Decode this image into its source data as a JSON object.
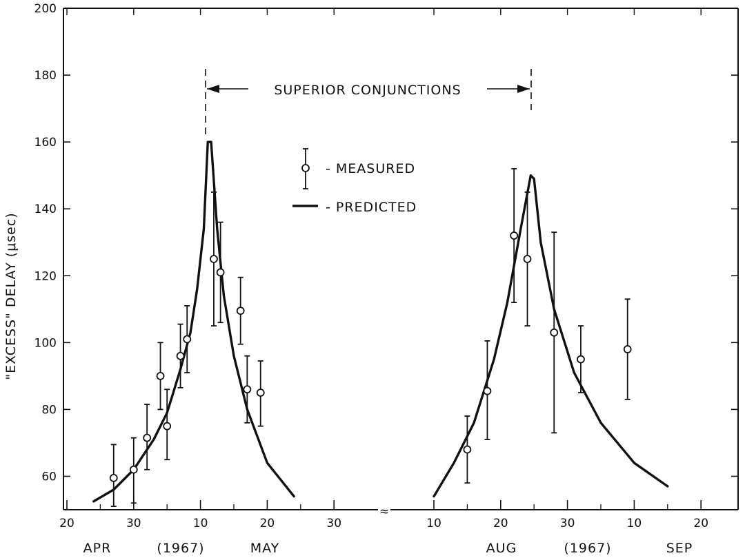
{
  "chart_data": {
    "type": "scatter",
    "title": "",
    "ylabel": "\"EXCESS\" DELAY (μsec)",
    "ylim": [
      50,
      200
    ],
    "y_ticks": [
      "200",
      "180",
      "160",
      "140",
      "120",
      "100",
      "80",
      "60"
    ],
    "x_ticks": [
      "20",
      "30",
      "10",
      "20",
      "30",
      "10",
      "20",
      "30",
      "10",
      "20"
    ],
    "break_mark": "≈",
    "month_labels": [
      "APR",
      "(1967)",
      "MAY",
      "AUG",
      "(1967)",
      "SEP"
    ],
    "annotation": "SUPERIOR CONJUNCTIONS",
    "legend": {
      "measured": "- MEASURED",
      "predicted": "- PREDICTED"
    },
    "segments": [
      {
        "name": "April–May 1967",
        "measured": [
          {
            "x": "1967-04-27",
            "y": 59.5,
            "yerr": [
              51,
              69.5
            ]
          },
          {
            "x": "1967-04-30",
            "y": 62,
            "yerr": [
              52,
              71.5
            ]
          },
          {
            "x": "1967-05-02",
            "y": 71.5,
            "yerr": [
              62,
              81.5
            ]
          },
          {
            "x": "1967-05-04",
            "y": 90,
            "yerr": [
              80,
              100
            ]
          },
          {
            "x": "1967-05-05",
            "y": 75,
            "yerr": [
              65,
              86
            ]
          },
          {
            "x": "1967-05-07",
            "y": 96,
            "yerr": [
              86.5,
              105.5
            ]
          },
          {
            "x": "1967-05-08",
            "y": 101,
            "yerr": [
              91,
              111
            ]
          },
          {
            "x": "1967-05-12",
            "y": 125,
            "yerr": [
              105,
              145
            ]
          },
          {
            "x": "1967-05-13",
            "y": 121,
            "yerr": [
              106,
              136
            ]
          },
          {
            "x": "1967-05-16",
            "y": 109.5,
            "yerr": [
              99.5,
              119.5
            ]
          },
          {
            "x": "1967-05-17",
            "y": 86,
            "yerr": [
              76,
              96
            ]
          },
          {
            "x": "1967-05-19",
            "y": 85,
            "yerr": [
              75,
              94.5
            ]
          }
        ],
        "predicted": [
          {
            "x": "1967-04-24",
            "y": 52.5
          },
          {
            "x": "1967-04-27",
            "y": 56
          },
          {
            "x": "1967-04-30",
            "y": 62
          },
          {
            "x": "1967-05-03",
            "y": 71
          },
          {
            "x": "1967-05-05",
            "y": 79
          },
          {
            "x": "1967-05-07",
            "y": 92
          },
          {
            "x": "1967-05-08.5",
            "y": 103
          },
          {
            "x": "1967-05-09.5",
            "y": 116
          },
          {
            "x": "1967-05-10.5",
            "y": 134
          },
          {
            "x": "1967-05-11.1",
            "y": 160
          },
          {
            "x": "1967-05-11.6",
            "y": 160
          },
          {
            "x": "1967-05-12.5",
            "y": 134
          },
          {
            "x": "1967-05-13.5",
            "y": 114
          },
          {
            "x": "1967-05-15",
            "y": 96
          },
          {
            "x": "1967-05-17",
            "y": 80
          },
          {
            "x": "1967-05-20",
            "y": 64
          },
          {
            "x": "1967-05-24",
            "y": 54
          }
        ],
        "conjunction": "1967-05-11"
      },
      {
        "name": "August–September 1967",
        "measured": [
          {
            "x": "1967-08-15",
            "y": 68,
            "yerr": [
              58,
              78
            ]
          },
          {
            "x": "1967-08-18",
            "y": 85.5,
            "yerr": [
              71,
              100.5
            ]
          },
          {
            "x": "1967-08-22",
            "y": 132,
            "yerr": [
              112,
              152
            ]
          },
          {
            "x": "1967-08-24",
            "y": 125,
            "yerr": [
              105,
              145
            ]
          },
          {
            "x": "1967-08-28",
            "y": 103,
            "yerr": [
              73,
              133
            ]
          },
          {
            "x": "1967-09-01",
            "y": 95,
            "yerr": [
              85,
              105
            ]
          },
          {
            "x": "1967-09-08",
            "y": 98,
            "yerr": [
              83,
              113
            ]
          }
        ],
        "predicted": [
          {
            "x": "1967-08-10",
            "y": 54
          },
          {
            "x": "1967-08-13",
            "y": 64
          },
          {
            "x": "1967-08-16",
            "y": 76
          },
          {
            "x": "1967-08-19",
            "y": 95
          },
          {
            "x": "1967-08-21",
            "y": 112
          },
          {
            "x": "1967-08-23",
            "y": 134
          },
          {
            "x": "1967-08-24.5",
            "y": 150
          },
          {
            "x": "1967-08-25",
            "y": 149
          },
          {
            "x": "1967-08-26",
            "y": 130
          },
          {
            "x": "1967-08-28",
            "y": 110
          },
          {
            "x": "1967-08-31",
            "y": 91
          },
          {
            "x": "1967-09-04",
            "y": 76
          },
          {
            "x": "1967-09-09",
            "y": 64
          },
          {
            "x": "1967-09-14",
            "y": 57
          }
        ],
        "conjunction": "1967-08-25"
      }
    ]
  }
}
